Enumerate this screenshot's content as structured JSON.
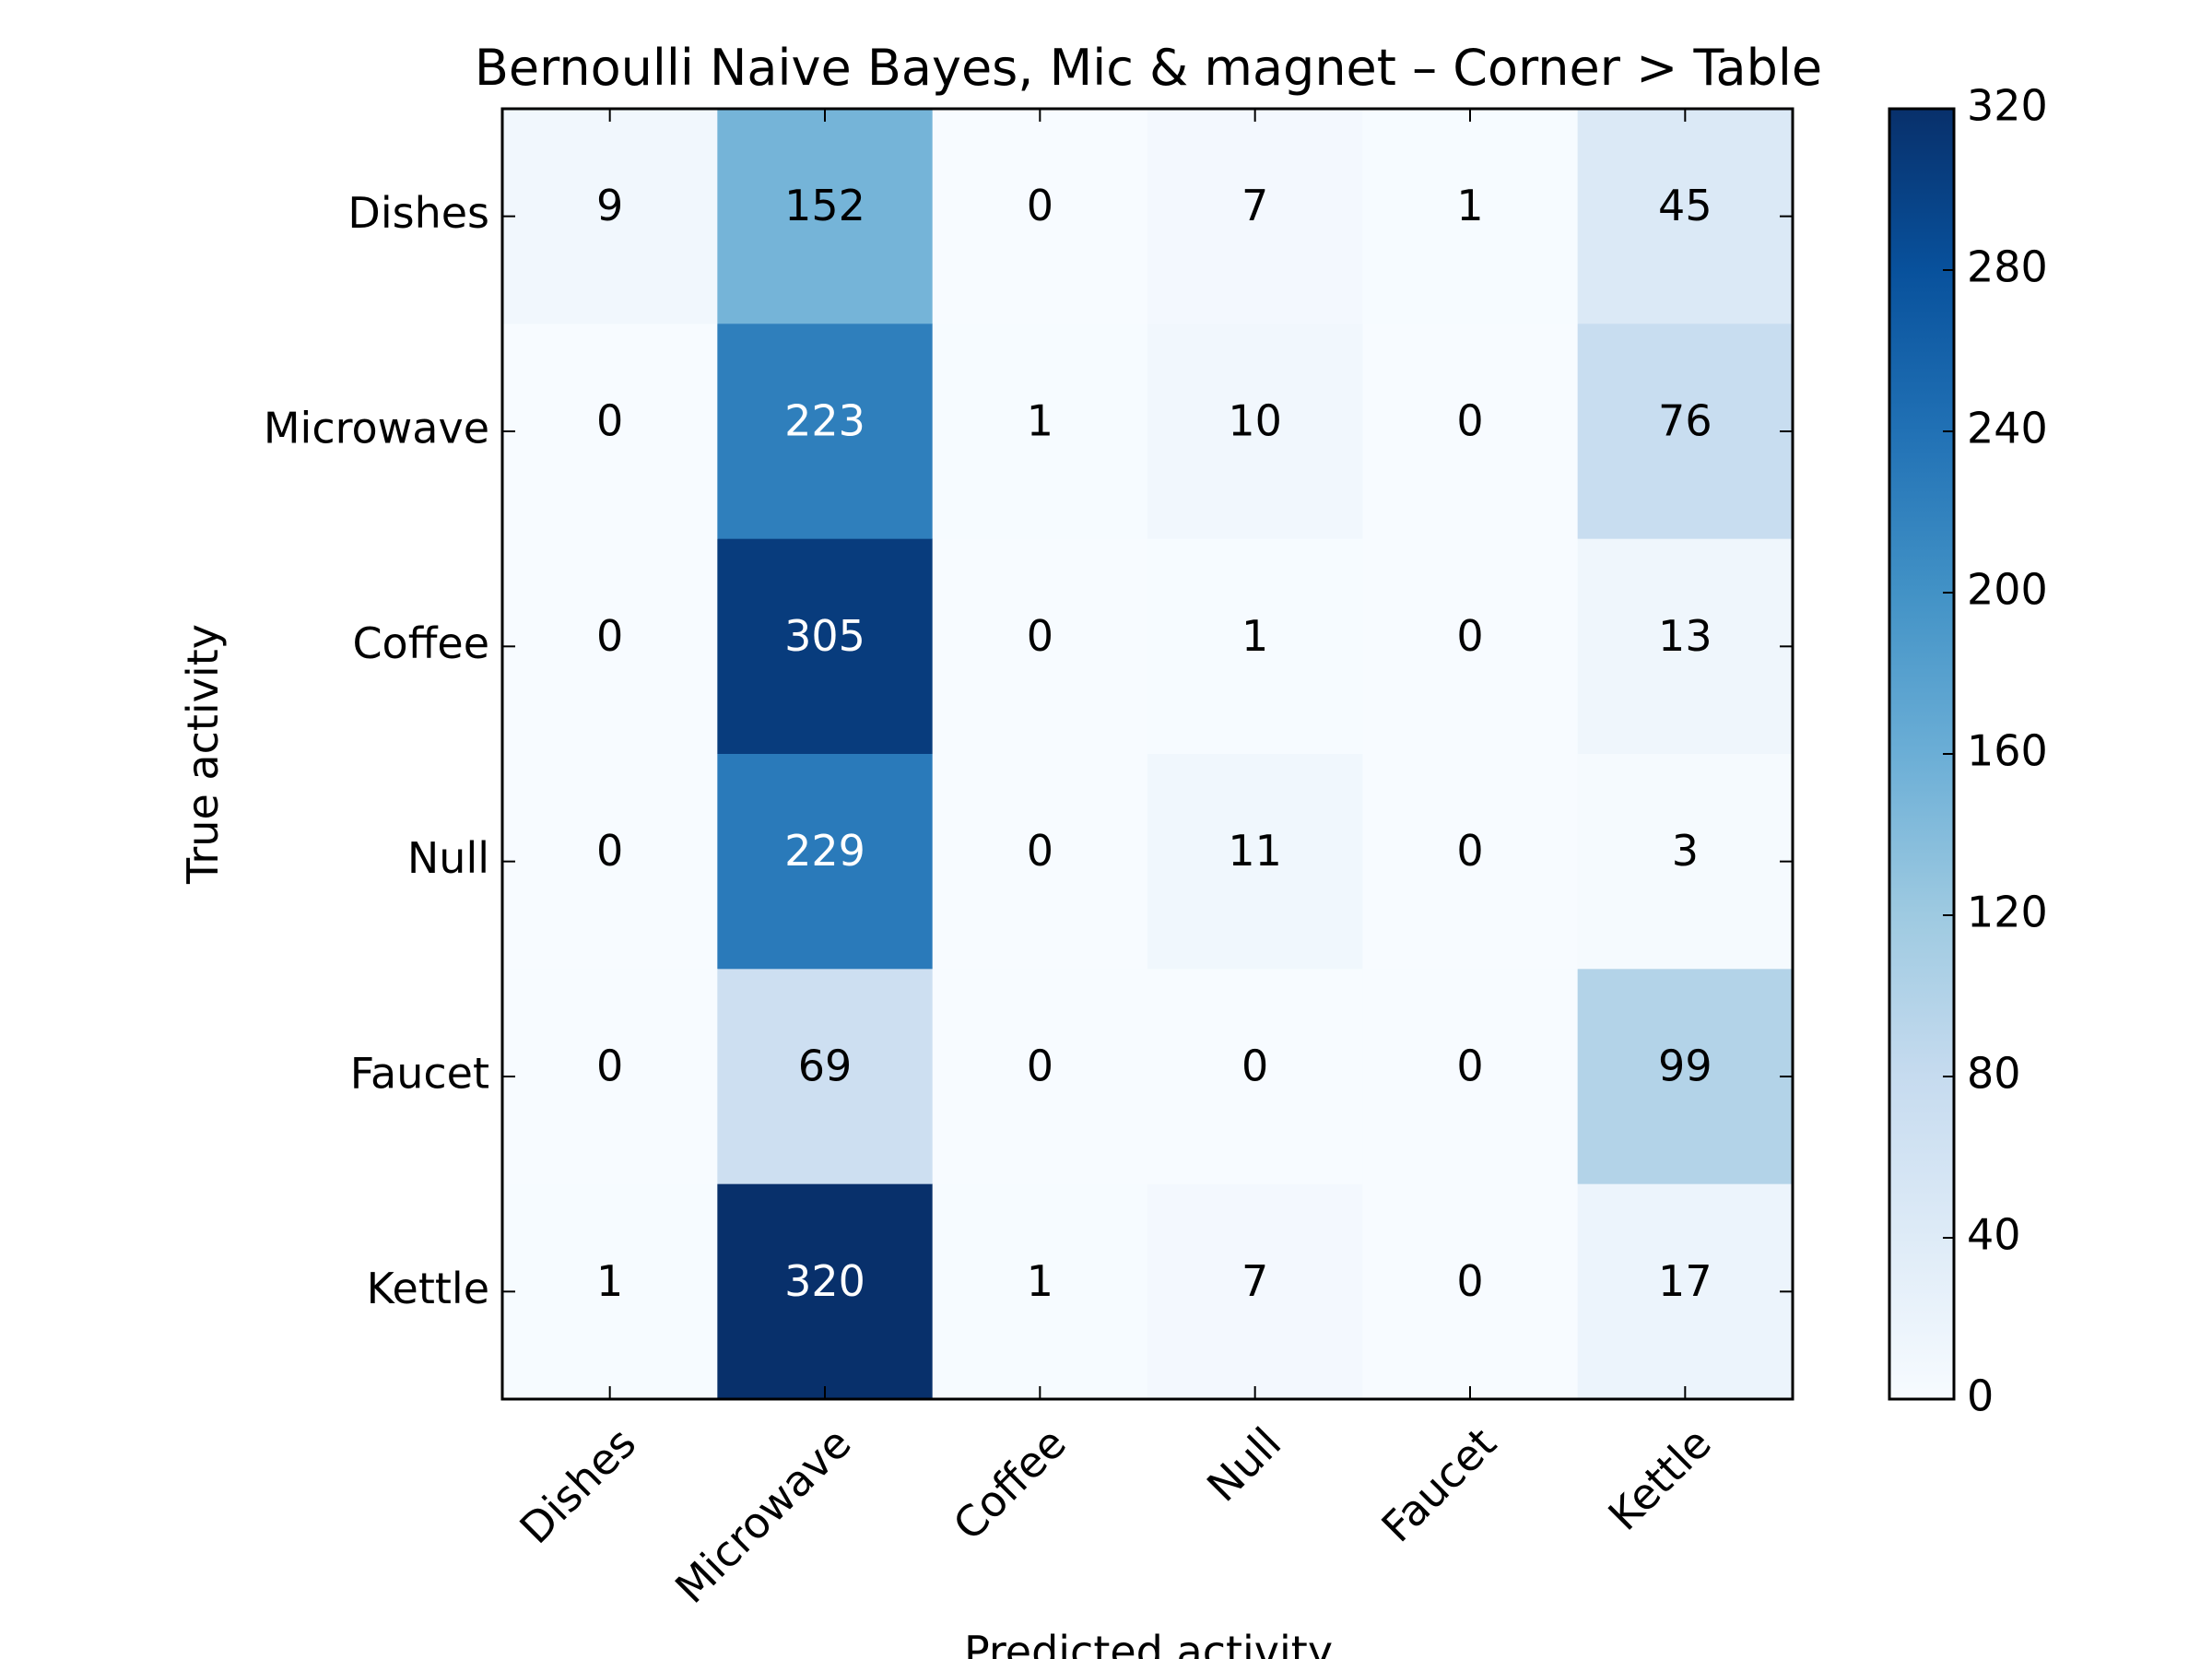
{
  "chart_data": {
    "type": "heatmap",
    "title": "Bernoulli Naive Bayes, Mic & magnet – Corner > Table",
    "xlabel": "Predicted activity",
    "ylabel": "True activity",
    "x_categories": [
      "Dishes",
      "Microwave",
      "Coffee",
      "Null",
      "Faucet",
      "Kettle"
    ],
    "y_categories": [
      "Dishes",
      "Microwave",
      "Coffee",
      "Null",
      "Faucet",
      "Kettle"
    ],
    "values": [
      [
        9,
        152,
        0,
        7,
        1,
        45
      ],
      [
        0,
        223,
        1,
        10,
        0,
        76
      ],
      [
        0,
        305,
        0,
        1,
        0,
        13
      ],
      [
        0,
        229,
        0,
        11,
        0,
        3
      ],
      [
        0,
        69,
        0,
        0,
        0,
        99
      ],
      [
        1,
        320,
        1,
        7,
        0,
        17
      ]
    ],
    "colorbar": {
      "range": [
        0,
        320
      ],
      "ticks": [
        "0",
        "40",
        "80",
        "120",
        "160",
        "200",
        "240",
        "280",
        "320"
      ]
    },
    "colormap": "Blues",
    "grid": false
  }
}
